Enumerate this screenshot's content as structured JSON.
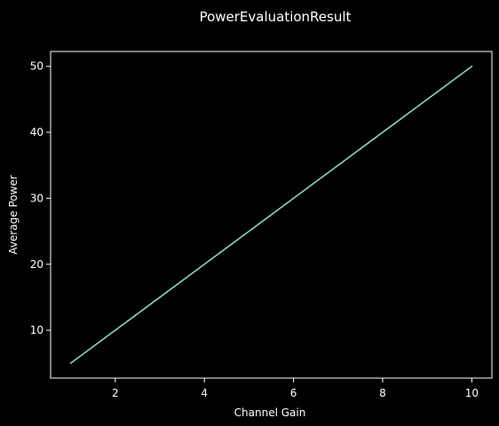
{
  "chart_data": {
    "type": "line",
    "title": "PowerEvaluationResult",
    "xlabel": "Channel Gain",
    "ylabel": "Average Power",
    "xlim": [
      0.55,
      10.45
    ],
    "ylim": [
      2.75,
      52.25
    ],
    "xticks": [
      2,
      4,
      6,
      8,
      10
    ],
    "yticks": [
      10,
      20,
      30,
      40,
      50
    ],
    "grid": false,
    "series": [
      {
        "color": "#8dd3c7",
        "x": [
          1,
          2,
          3,
          4,
          5,
          6,
          7,
          8,
          9,
          10
        ],
        "values": [
          5,
          10,
          15,
          20,
          25,
          30,
          35,
          40,
          45,
          50
        ]
      }
    ],
    "colors": {
      "background": "#000000",
      "axes": "#ffffff",
      "text": "#ffffff"
    }
  }
}
